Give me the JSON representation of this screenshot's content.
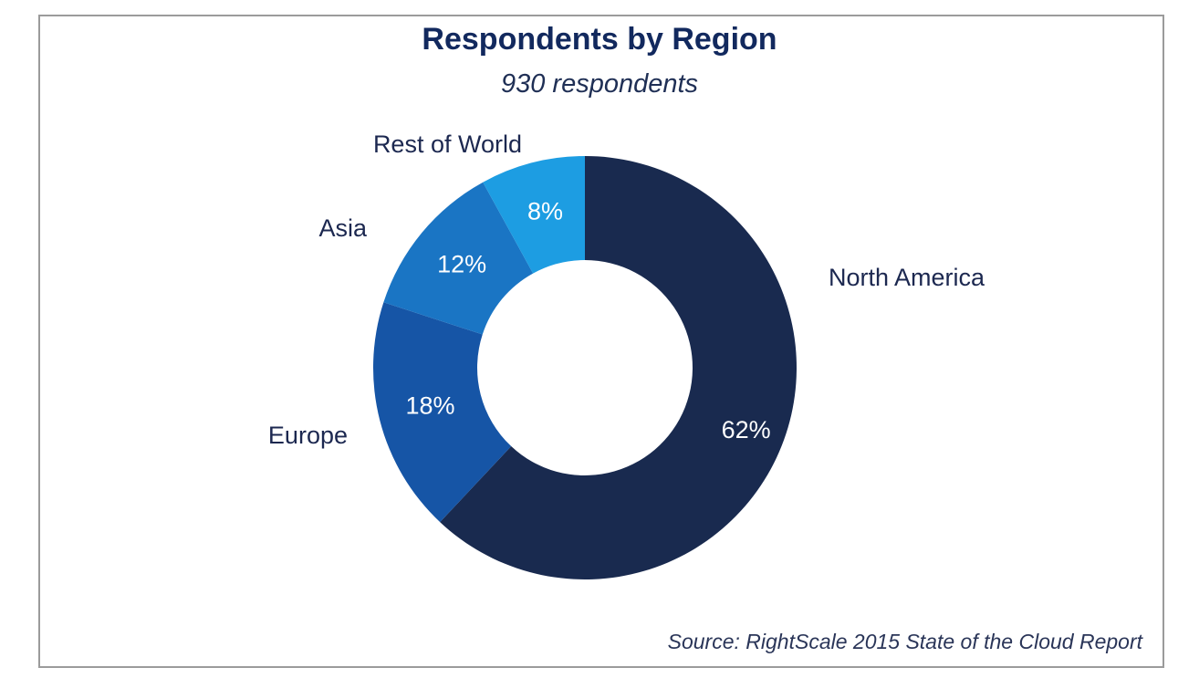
{
  "chart_data": {
    "type": "pie",
    "variant": "donut",
    "title": "Respondents by Region",
    "subtitle": "930 respondents",
    "source": "Source: RightScale 2015 State of the Cloud Report",
    "categories": [
      "North America",
      "Europe",
      "Asia",
      "Rest of World"
    ],
    "values": [
      62,
      18,
      12,
      8
    ],
    "value_labels": [
      "62%",
      "18%",
      "12%",
      "8%"
    ],
    "colors": [
      "#192a4f",
      "#1655a6",
      "#1a75c4",
      "#1d9de2"
    ],
    "start": "12 o'clock",
    "direction": "clockwise"
  }
}
